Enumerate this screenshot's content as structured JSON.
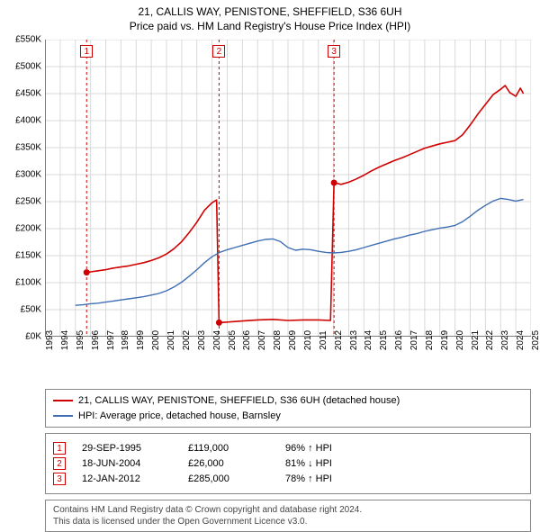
{
  "title": {
    "line1": "21, CALLIS WAY, PENISTONE, SHEFFIELD, S36 6UH",
    "line2": "Price paid vs. HM Land Registry's House Price Index (HPI)"
  },
  "chart": {
    "background_color": "#ffffff",
    "grid_color": "#d9d9d9",
    "axis_color": "#000000",
    "x": {
      "min": 1993,
      "max": 2025,
      "ticks": [
        1993,
        1994,
        1995,
        1996,
        1997,
        1998,
        1999,
        2000,
        2001,
        2002,
        2003,
        2004,
        2005,
        2006,
        2007,
        2008,
        2009,
        2010,
        2011,
        2012,
        2013,
        2014,
        2015,
        2016,
        2017,
        2018,
        2019,
        2020,
        2021,
        2022,
        2023,
        2024,
        2025
      ]
    },
    "y": {
      "min": 0,
      "max": 550,
      "ticks": [
        0,
        50,
        100,
        150,
        200,
        250,
        300,
        350,
        400,
        450,
        500,
        550
      ],
      "tick_prefix": "£",
      "tick_suffix": "K"
    },
    "series": [
      {
        "name": "property",
        "label": "21, CALLIS WAY, PENISTONE, SHEFFIELD, S36 6UH (detached house)",
        "color": "#d00000",
        "width": 1.6,
        "points": [
          [
            1995.74,
            119
          ],
          [
            1996,
            120
          ],
          [
            1996.5,
            122
          ],
          [
            1997,
            124
          ],
          [
            1997.5,
            127
          ],
          [
            1998,
            129
          ],
          [
            1998.5,
            131
          ],
          [
            1999,
            134
          ],
          [
            1999.5,
            137
          ],
          [
            2000,
            141
          ],
          [
            2000.5,
            146
          ],
          [
            2001,
            153
          ],
          [
            2001.5,
            163
          ],
          [
            2002,
            176
          ],
          [
            2002.5,
            193
          ],
          [
            2003,
            212
          ],
          [
            2003.5,
            234
          ],
          [
            2004,
            248
          ],
          [
            2004.3,
            253
          ],
          [
            2004.46,
            26
          ],
          [
            2005,
            27
          ],
          [
            2006,
            29
          ],
          [
            2007,
            31
          ],
          [
            2008,
            32
          ],
          [
            2009,
            30
          ],
          [
            2010,
            31
          ],
          [
            2011,
            31
          ],
          [
            2011.8,
            30
          ],
          [
            2012.03,
            285
          ],
          [
            2012.5,
            282
          ],
          [
            2013,
            286
          ],
          [
            2013.5,
            292
          ],
          [
            2014,
            299
          ],
          [
            2014.5,
            307
          ],
          [
            2015,
            314
          ],
          [
            2015.5,
            320
          ],
          [
            2016,
            326
          ],
          [
            2016.5,
            331
          ],
          [
            2017,
            337
          ],
          [
            2017.5,
            343
          ],
          [
            2018,
            349
          ],
          [
            2018.5,
            353
          ],
          [
            2019,
            357
          ],
          [
            2019.5,
            360
          ],
          [
            2020,
            363
          ],
          [
            2020.5,
            374
          ],
          [
            2021,
            392
          ],
          [
            2021.5,
            412
          ],
          [
            2022,
            430
          ],
          [
            2022.5,
            448
          ],
          [
            2023,
            458
          ],
          [
            2023.3,
            465
          ],
          [
            2023.6,
            452
          ],
          [
            2024,
            445
          ],
          [
            2024.3,
            460
          ],
          [
            2024.5,
            450
          ]
        ],
        "markers": [
          {
            "x": 1995.74,
            "y": 119
          },
          {
            "x": 2004.46,
            "y": 26
          },
          {
            "x": 2012.03,
            "y": 285
          }
        ]
      },
      {
        "name": "hpi",
        "label": "HPI: Average price, detached house, Barnsley",
        "color": "#3f6fb4",
        "width": 1.4,
        "points": [
          [
            1995,
            58
          ],
          [
            1995.5,
            59
          ],
          [
            1996,
            61
          ],
          [
            1996.5,
            62
          ],
          [
            1997,
            64
          ],
          [
            1997.5,
            66
          ],
          [
            1998,
            68
          ],
          [
            1998.5,
            70
          ],
          [
            1999,
            72
          ],
          [
            1999.5,
            74
          ],
          [
            2000,
            77
          ],
          [
            2000.5,
            80
          ],
          [
            2001,
            85
          ],
          [
            2001.5,
            92
          ],
          [
            2002,
            101
          ],
          [
            2002.5,
            112
          ],
          [
            2003,
            124
          ],
          [
            2003.5,
            137
          ],
          [
            2004,
            148
          ],
          [
            2004.5,
            156
          ],
          [
            2005,
            161
          ],
          [
            2005.5,
            165
          ],
          [
            2006,
            169
          ],
          [
            2006.5,
            173
          ],
          [
            2007,
            177
          ],
          [
            2007.5,
            180
          ],
          [
            2008,
            181
          ],
          [
            2008.5,
            176
          ],
          [
            2009,
            165
          ],
          [
            2009.5,
            160
          ],
          [
            2010,
            162
          ],
          [
            2010.5,
            161
          ],
          [
            2011,
            158
          ],
          [
            2011.5,
            156
          ],
          [
            2012,
            155
          ],
          [
            2012.5,
            156
          ],
          [
            2013,
            158
          ],
          [
            2013.5,
            161
          ],
          [
            2014,
            165
          ],
          [
            2014.5,
            169
          ],
          [
            2015,
            173
          ],
          [
            2015.5,
            177
          ],
          [
            2016,
            181
          ],
          [
            2016.5,
            184
          ],
          [
            2017,
            188
          ],
          [
            2017.5,
            191
          ],
          [
            2018,
            195
          ],
          [
            2018.5,
            198
          ],
          [
            2019,
            201
          ],
          [
            2019.5,
            203
          ],
          [
            2020,
            206
          ],
          [
            2020.5,
            213
          ],
          [
            2021,
            223
          ],
          [
            2021.5,
            234
          ],
          [
            2022,
            243
          ],
          [
            2022.5,
            251
          ],
          [
            2023,
            256
          ],
          [
            2023.5,
            254
          ],
          [
            2024,
            251
          ],
          [
            2024.5,
            254
          ]
        ]
      }
    ],
    "vlines": [
      {
        "num": "1",
        "x": 1995.74,
        "color": "#d00000",
        "dash": "3,3"
      },
      {
        "num": "2",
        "x": 2004.46,
        "color": "#d00000",
        "dash": "3,3"
      },
      {
        "num": "3",
        "x": 2012.03,
        "color": "#d00000",
        "dash": "3,3"
      }
    ]
  },
  "legend": {
    "items": [
      {
        "color": "#d00000",
        "label": "21, CALLIS WAY, PENISTONE, SHEFFIELD, S36 6UH (detached house)"
      },
      {
        "color": "#3f6fb4",
        "label": "HPI: Average price, detached house, Barnsley"
      }
    ]
  },
  "events": [
    {
      "num": "1",
      "date": "29-SEP-1995",
      "price": "£119,000",
      "pct": "96% ↑ HPI"
    },
    {
      "num": "2",
      "date": "18-JUN-2004",
      "price": "£26,000",
      "pct": "81% ↓ HPI"
    },
    {
      "num": "3",
      "date": "12-JAN-2012",
      "price": "£285,000",
      "pct": "78% ↑ HPI"
    }
  ],
  "footer": {
    "line1": "Contains HM Land Registry data © Crown copyright and database right 2024.",
    "line2": "This data is licensed under the Open Government Licence v3.0."
  }
}
